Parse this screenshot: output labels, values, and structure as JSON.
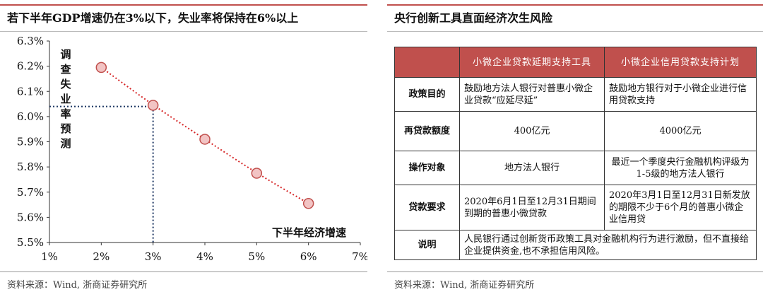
{
  "left_panel": {
    "title": "若下半年GDP增速仍在3%以下，失业率将保持在6%以上",
    "source": "资料来源：Wind, 浙商证券研究所"
  },
  "chart_data": {
    "type": "scatter",
    "title": "若下半年GDP增速仍在3%以下，失业率将保持在6%以上",
    "xlabel": "下半年经济增速",
    "ylabel": "调查失业率预测",
    "x_ticks": [
      "1%",
      "2%",
      "3%",
      "4%",
      "5%",
      "6%",
      "7%"
    ],
    "y_ticks": [
      "5.5%",
      "5.6%",
      "5.7%",
      "5.8%",
      "5.9%",
      "6.0%",
      "6.1%",
      "6.2%",
      "6.3%"
    ],
    "xlim": [
      1,
      7
    ],
    "ylim": [
      5.5,
      6.3
    ],
    "x": [
      2,
      3,
      4,
      5,
      6
    ],
    "y": [
      6.195,
      6.045,
      5.91,
      5.775,
      5.655
    ],
    "trendline": "dotted, red",
    "reference_lines": {
      "x": 3,
      "y": 6.04,
      "style": "dotted, navy"
    },
    "colors": {
      "marker_fill": "#f2c4c4",
      "marker_stroke": "#c0504d",
      "trend": "#d62728",
      "reference": "#1f3864"
    }
  },
  "right_panel": {
    "title": "央行创新工具直面经济次生风险",
    "source": "资料来源：Wind, 浙商证券研究所",
    "table": {
      "headers": [
        "",
        "小微企业贷款延期支持工具",
        "小微企业信用贷款支持计划"
      ],
      "rows": [
        [
          "政策目的",
          "鼓励地方法人银行对普惠小微企业贷款“应延尽延”",
          "鼓励地方银行对于小微企业进行信用贷款支持"
        ],
        [
          "再贷款额度",
          "400亿元",
          "4000亿元"
        ],
        [
          "操作对象",
          "地方法人银行",
          "最近一个季度央行金融机构评级为1-5级的地方法人银行"
        ],
        [
          "贷款要求",
          "2020年6月1日至12月31日期间到期的普惠小微贷款",
          "2020年3月1日至12月31日新发放的期限不少于6个月的普惠小微企业信用贷"
        ],
        [
          "说明",
          "人民银行通过创新货币政策工具对金融机构行为进行激励，但不直接给企业提供资金,也不承担信用风险。"
        ]
      ]
    }
  }
}
